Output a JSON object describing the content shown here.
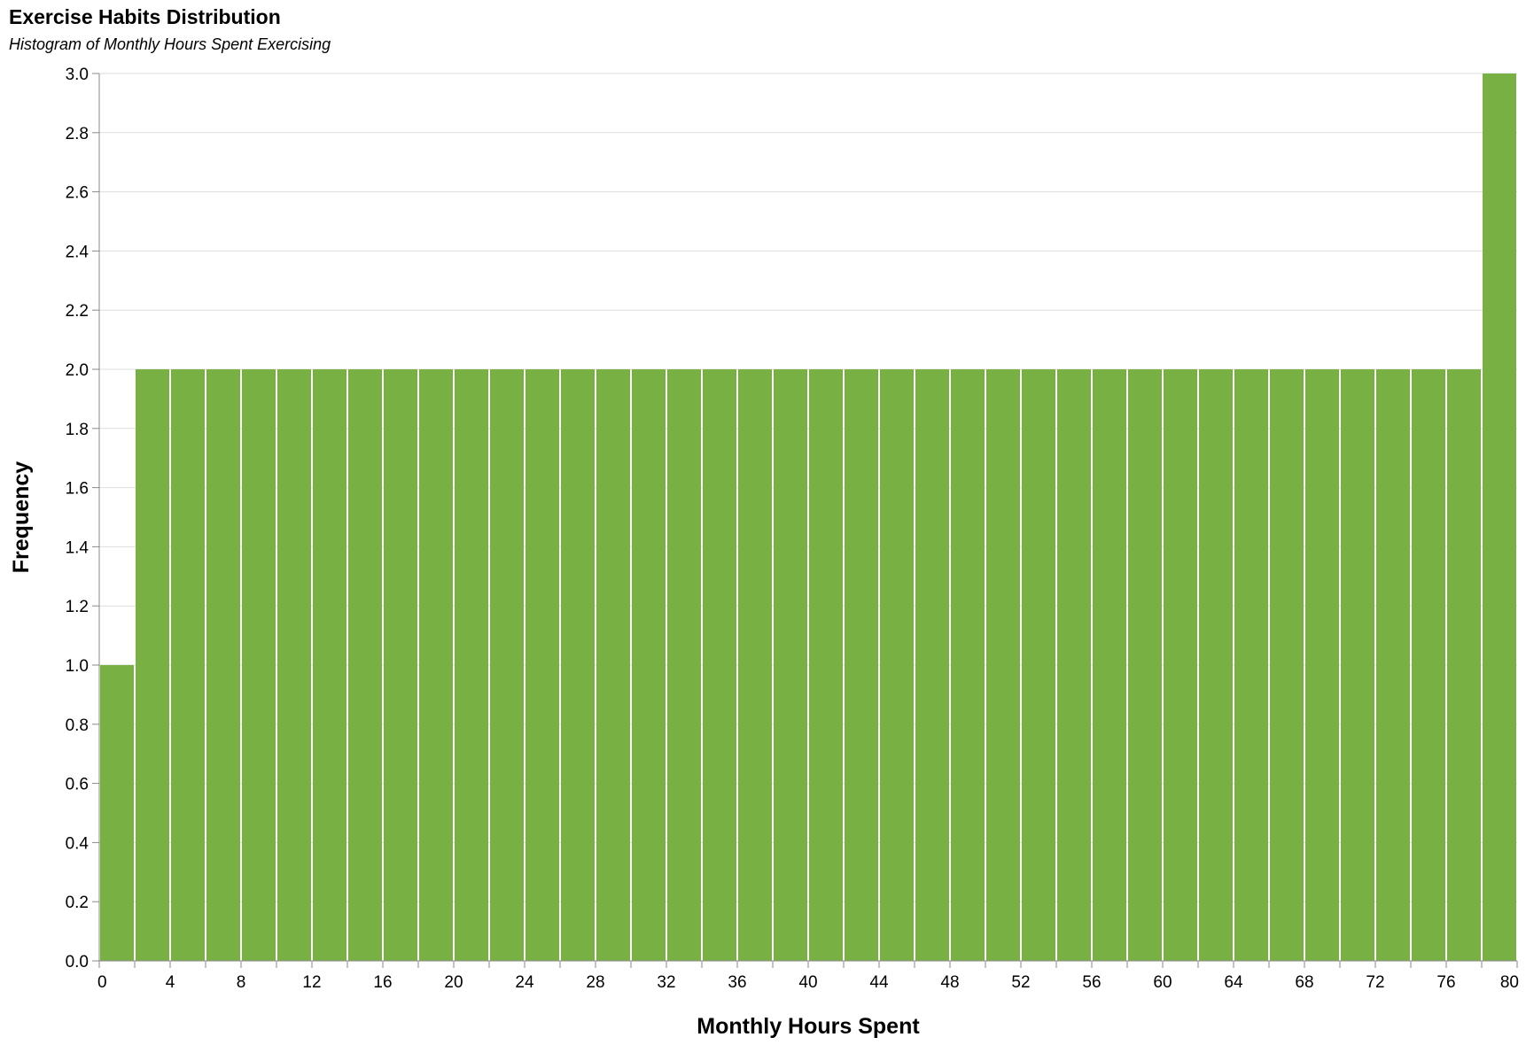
{
  "chart_data": {
    "type": "bar",
    "title": "Exercise Habits Distribution",
    "subtitle": "Histogram of Monthly Hours Spent Exercising",
    "xlabel": "Monthly Hours Spent",
    "ylabel": "Frequency",
    "bin_width": 2,
    "xlim": [
      0,
      80
    ],
    "ylim": [
      0,
      3
    ],
    "x_ticks": [
      "0",
      "4",
      "8",
      "12",
      "16",
      "20",
      "24",
      "28",
      "32",
      "36",
      "40",
      "44",
      "48",
      "52",
      "56",
      "60",
      "64",
      "68",
      "72",
      "76",
      "80"
    ],
    "y_ticks": [
      "0.0",
      "0.2",
      "0.4",
      "0.6",
      "0.8",
      "1.0",
      "1.2",
      "1.4",
      "1.6",
      "1.8",
      "2.0",
      "2.2",
      "2.4",
      "2.6",
      "2.8",
      "3.0"
    ],
    "bins": [
      {
        "start": 0,
        "end": 2,
        "count": 1
      },
      {
        "start": 2,
        "end": 4,
        "count": 2
      },
      {
        "start": 4,
        "end": 6,
        "count": 2
      },
      {
        "start": 6,
        "end": 8,
        "count": 2
      },
      {
        "start": 8,
        "end": 10,
        "count": 2
      },
      {
        "start": 10,
        "end": 12,
        "count": 2
      },
      {
        "start": 12,
        "end": 14,
        "count": 2
      },
      {
        "start": 14,
        "end": 16,
        "count": 2
      },
      {
        "start": 16,
        "end": 18,
        "count": 2
      },
      {
        "start": 18,
        "end": 20,
        "count": 2
      },
      {
        "start": 20,
        "end": 22,
        "count": 2
      },
      {
        "start": 22,
        "end": 24,
        "count": 2
      },
      {
        "start": 24,
        "end": 26,
        "count": 2
      },
      {
        "start": 26,
        "end": 28,
        "count": 2
      },
      {
        "start": 28,
        "end": 30,
        "count": 2
      },
      {
        "start": 30,
        "end": 32,
        "count": 2
      },
      {
        "start": 32,
        "end": 34,
        "count": 2
      },
      {
        "start": 34,
        "end": 36,
        "count": 2
      },
      {
        "start": 36,
        "end": 38,
        "count": 2
      },
      {
        "start": 38,
        "end": 40,
        "count": 2
      },
      {
        "start": 40,
        "end": 42,
        "count": 2
      },
      {
        "start": 42,
        "end": 44,
        "count": 2
      },
      {
        "start": 44,
        "end": 46,
        "count": 2
      },
      {
        "start": 46,
        "end": 48,
        "count": 2
      },
      {
        "start": 48,
        "end": 50,
        "count": 2
      },
      {
        "start": 50,
        "end": 52,
        "count": 2
      },
      {
        "start": 52,
        "end": 54,
        "count": 2
      },
      {
        "start": 54,
        "end": 56,
        "count": 2
      },
      {
        "start": 56,
        "end": 58,
        "count": 2
      },
      {
        "start": 58,
        "end": 60,
        "count": 2
      },
      {
        "start": 60,
        "end": 62,
        "count": 2
      },
      {
        "start": 62,
        "end": 64,
        "count": 2
      },
      {
        "start": 64,
        "end": 66,
        "count": 2
      },
      {
        "start": 66,
        "end": 68,
        "count": 2
      },
      {
        "start": 68,
        "end": 70,
        "count": 2
      },
      {
        "start": 70,
        "end": 72,
        "count": 2
      },
      {
        "start": 72,
        "end": 74,
        "count": 2
      },
      {
        "start": 74,
        "end": 76,
        "count": 2
      },
      {
        "start": 76,
        "end": 78,
        "count": 2
      },
      {
        "start": 78,
        "end": 80,
        "count": 3
      }
    ],
    "bar_color": "#78b043",
    "grid": true,
    "legend": "none"
  }
}
